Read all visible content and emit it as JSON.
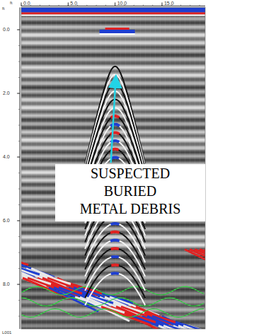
{
  "chart_data": {
    "type": "radargram",
    "x_label": "ft",
    "y_label": "ft",
    "xlim": [
      0,
      19.6
    ],
    "ylim": [
      -0.7,
      9.4
    ],
    "xticks": [
      {
        "value": 0,
        "label": "0.0"
      },
      {
        "value": 5,
        "label": "5.0"
      },
      {
        "value": 10,
        "label": "10.0"
      },
      {
        "value": 15,
        "label": "15.0"
      }
    ],
    "yticks": [
      {
        "value": 0,
        "label": "0.0"
      },
      {
        "value": 2,
        "label": "2.0"
      },
      {
        "value": 4,
        "label": "4.0"
      },
      {
        "value": 6,
        "label": "6.0"
      },
      {
        "value": 8,
        "label": "8.0"
      }
    ],
    "target": {
      "x": 10.0,
      "y": 1.15
    },
    "annotation": [
      "SUSPECTED",
      "BURIED",
      "METAL DEBRIS"
    ],
    "footnote": "L001"
  }
}
